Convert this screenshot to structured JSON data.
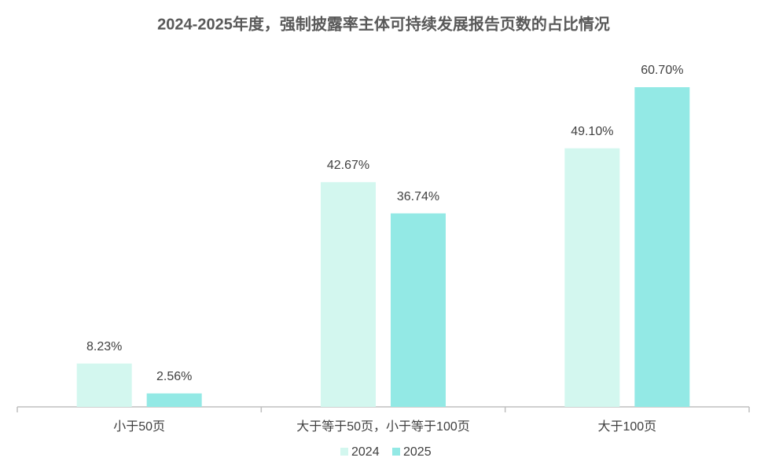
{
  "chart_data": {
    "type": "bar",
    "title": "2024-2025年度，强制披露率主体可持续发展报告页数的占比情况",
    "categories": [
      "小于50页",
      "大于等于50页，小于等于100页",
      "大于100页"
    ],
    "series": [
      {
        "name": "2024",
        "color": "#d3f7ef",
        "values": [
          8.23,
          42.67,
          49.1
        ],
        "value_labels": [
          "8.23%",
          "42.67%",
          "49.10%"
        ]
      },
      {
        "name": "2025",
        "color": "#93e9e5",
        "values": [
          2.56,
          36.74,
          60.7
        ],
        "value_labels": [
          "2.56%",
          "36.74%",
          "60.70%"
        ]
      }
    ],
    "legend": "bottom"
  }
}
